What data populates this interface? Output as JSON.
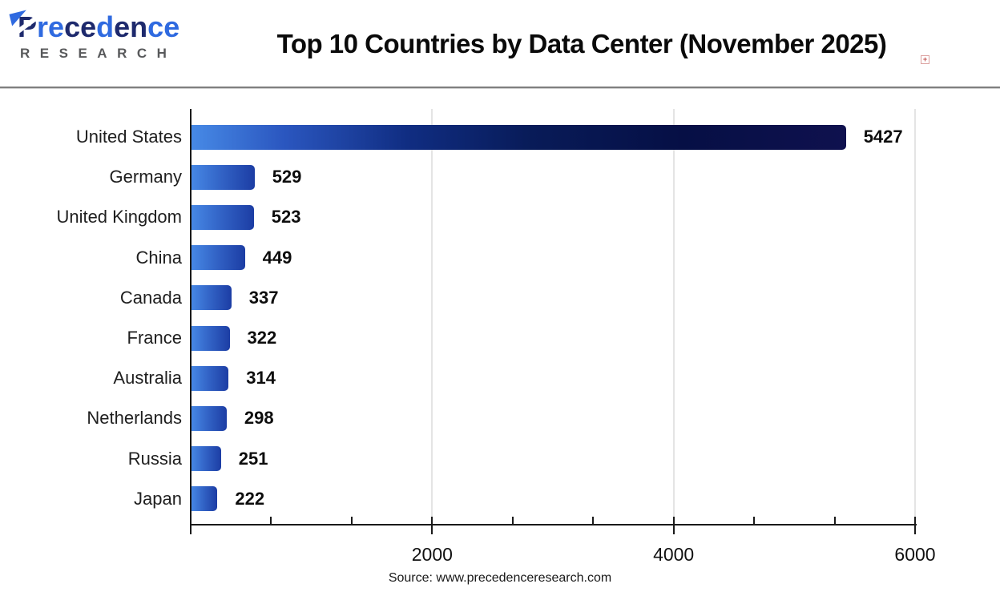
{
  "header": {
    "logo": {
      "line1_letters": [
        {
          "ch": "P",
          "color": "#1e2a6d"
        },
        {
          "ch": "r",
          "color": "#2f6ae0"
        },
        {
          "ch": "e",
          "color": "#2f6ae0"
        },
        {
          "ch": "c",
          "color": "#1e2a6d"
        },
        {
          "ch": "e",
          "color": "#1e2a6d"
        },
        {
          "ch": "d",
          "color": "#2f6ae0"
        },
        {
          "ch": "e",
          "color": "#1e2a6d"
        },
        {
          "ch": "n",
          "color": "#1e2a6d"
        },
        {
          "ch": "c",
          "color": "#2f6ae0"
        },
        {
          "ch": "e",
          "color": "#2f6ae0"
        }
      ],
      "line2": "RESEARCH"
    },
    "title": "Top 10 Countries by Data Center (November 2025)",
    "broken_image_glyph": "+"
  },
  "chart_data": {
    "type": "bar",
    "orientation": "horizontal",
    "title": "Top 10 Countries by Data Center (November 2025)",
    "categories": [
      "United States",
      "Germany",
      "United Kingdom",
      "China",
      "Canada",
      "France",
      "Australia",
      "Netherlands",
      "Russia",
      "Japan"
    ],
    "values": [
      5427,
      529,
      523,
      449,
      337,
      322,
      314,
      298,
      251,
      222
    ],
    "xlabel": "",
    "ylabel": "",
    "xlim": [
      0,
      6000
    ],
    "x_ticks_labeled": [
      2000,
      4000,
      6000
    ],
    "n_axis_divisions": 9,
    "grid": true,
    "legend": false,
    "value_labels_shown": true,
    "colors": {
      "bar_gradient_stops": [
        "#4789e6 0%",
        "#3161c4 50%",
        "#1c3da4 100%"
      ],
      "max_bar_gradient_stops": [
        "#478ae6 0%",
        "#2b57c0 14%",
        "#102d82 33%",
        "#081b58 52%",
        "#060f45 75%",
        "#0f114e 100%"
      ],
      "axis": "#1a1a1a",
      "grid": "#e4e4e4",
      "tick_label": "#111111",
      "category_label": "#1f1f1f",
      "value_label": "#0d0d0d"
    }
  },
  "footer": {
    "source": "Source: www.precedenceresearch.com"
  }
}
